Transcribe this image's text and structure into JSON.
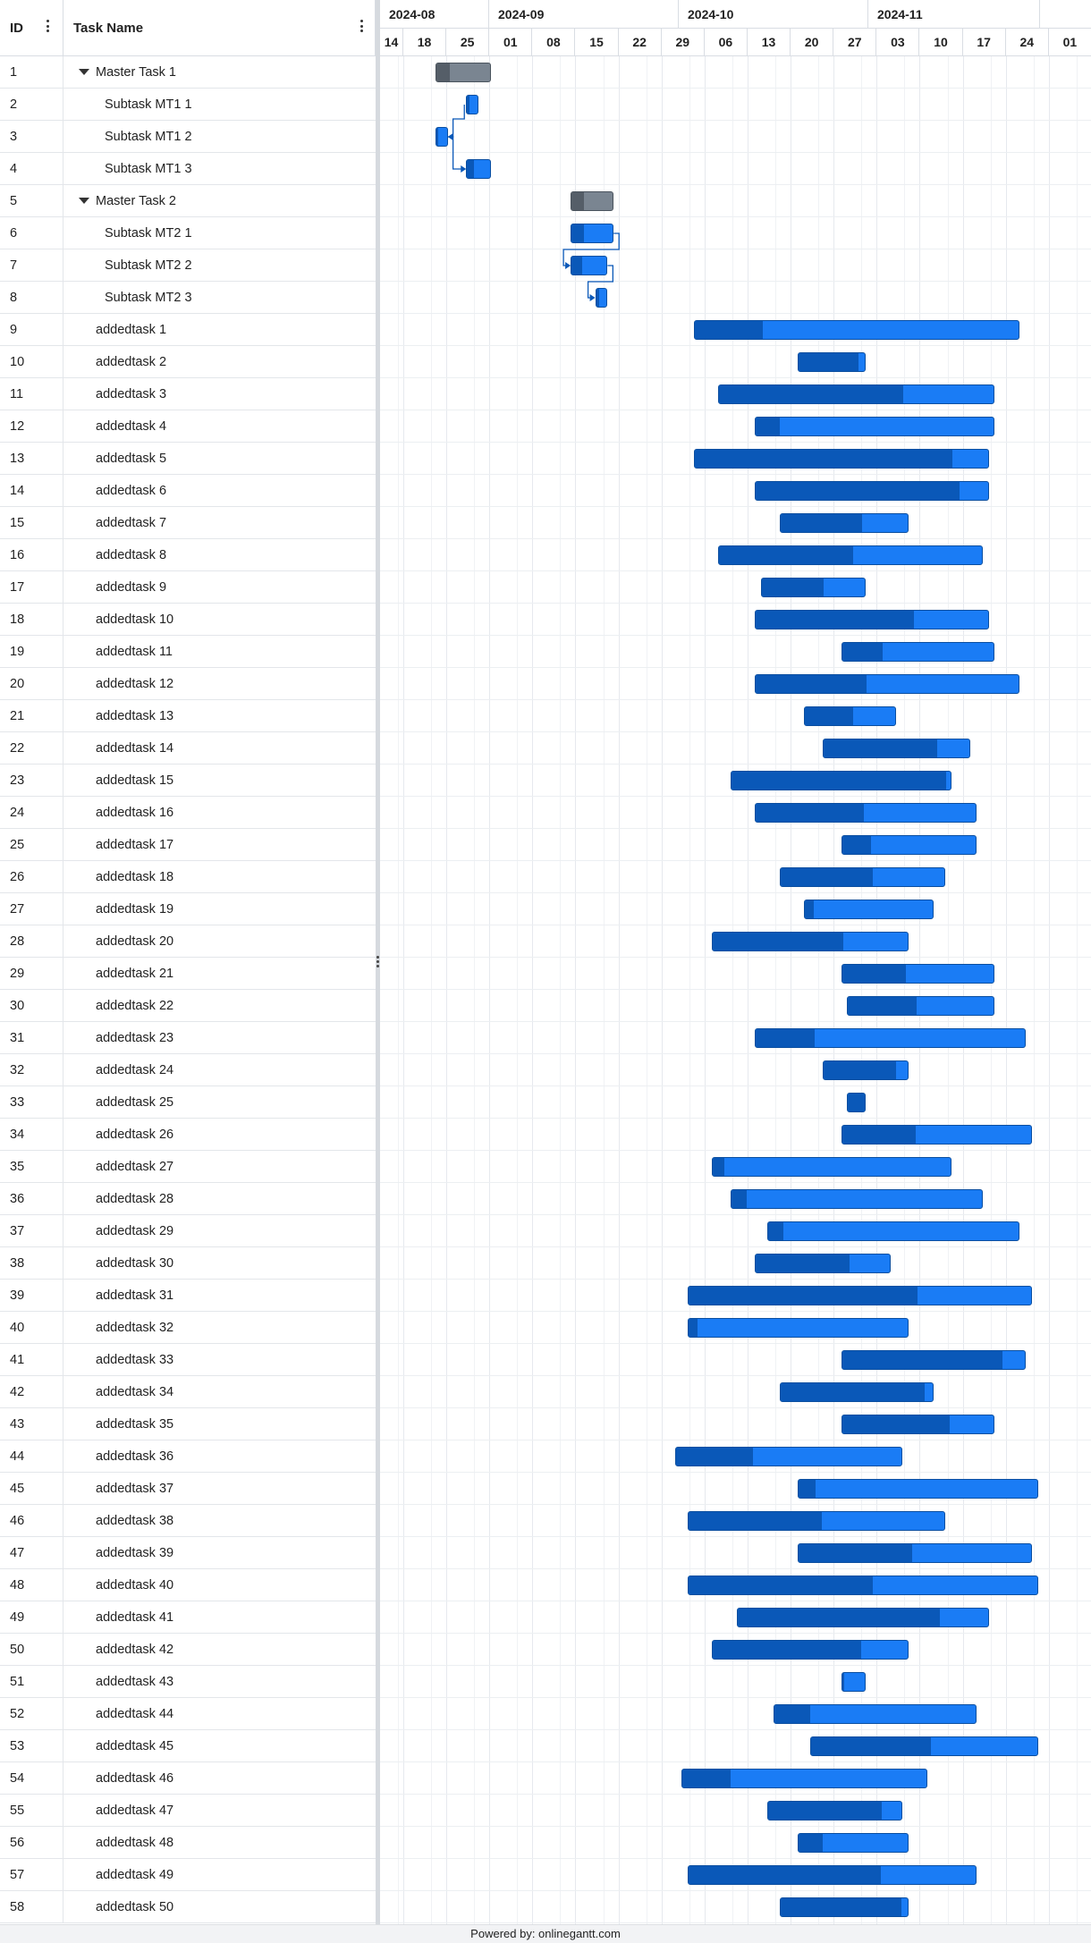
{
  "grid": {
    "id_header": "ID",
    "name_header": "Task Name"
  },
  "timeline": {
    "months": [
      "2024-08",
      "2024-09",
      "2024-10",
      "2024-11"
    ],
    "weeks": [
      "14",
      "18",
      "25",
      "01",
      "08",
      "15",
      "22",
      "29",
      "06",
      "13",
      "20",
      "27",
      "03",
      "10",
      "17",
      "24",
      "01"
    ]
  },
  "tasks": [
    {
      "id": "1",
      "name": "Master Task 1",
      "type": "parent",
      "expanded": true,
      "start": "2024-08-21",
      "end": "2024-08-30",
      "progress": 0.25
    },
    {
      "id": "2",
      "name": "Subtask MT1 1",
      "type": "child",
      "start": "2024-08-26",
      "end": "2024-08-28",
      "progress": 0.2
    },
    {
      "id": "3",
      "name": "Subtask MT1 2",
      "type": "child",
      "start": "2024-08-21",
      "end": "2024-08-23",
      "progress": 0.2
    },
    {
      "id": "4",
      "name": "Subtask MT1 3",
      "type": "child",
      "start": "2024-08-26",
      "end": "2024-08-30",
      "progress": 0.3
    },
    {
      "id": "5",
      "name": "Master Task 2",
      "type": "parent",
      "expanded": true,
      "start": "2024-09-12",
      "end": "2024-09-19",
      "progress": 0.3
    },
    {
      "id": "6",
      "name": "Subtask MT2 1",
      "type": "child",
      "start": "2024-09-12",
      "end": "2024-09-19",
      "progress": 0.3
    },
    {
      "id": "7",
      "name": "Subtask MT2 2",
      "type": "child",
      "start": "2024-09-12",
      "end": "2024-09-18",
      "progress": 0.3
    },
    {
      "id": "8",
      "name": "Subtask MT2 3",
      "type": "child",
      "start": "2024-09-16",
      "end": "2024-09-18",
      "progress": 0.3
    },
    {
      "id": "9",
      "name": "addedtask 1",
      "start": "2024-10-02",
      "end": "2024-11-24",
      "progress": 0.21
    },
    {
      "id": "10",
      "name": "addedtask 2",
      "start": "2024-10-19",
      "end": "2024-10-30",
      "progress": 0.9
    },
    {
      "id": "11",
      "name": "addedtask 3",
      "start": "2024-10-06",
      "end": "2024-11-20",
      "progress": 0.67
    },
    {
      "id": "12",
      "name": "addedtask 4",
      "start": "2024-10-12",
      "end": "2024-11-20",
      "progress": 0.1
    },
    {
      "id": "13",
      "name": "addedtask 5",
      "start": "2024-10-02",
      "end": "2024-11-19",
      "progress": 0.88
    },
    {
      "id": "14",
      "name": "addedtask 6",
      "start": "2024-10-12",
      "end": "2024-11-19",
      "progress": 0.88
    },
    {
      "id": "15",
      "name": "addedtask 7",
      "start": "2024-10-16",
      "end": "2024-11-06",
      "progress": 0.64
    },
    {
      "id": "16",
      "name": "addedtask 8",
      "start": "2024-10-06",
      "end": "2024-11-18",
      "progress": 0.51
    },
    {
      "id": "17",
      "name": "addedtask 9",
      "start": "2024-10-13",
      "end": "2024-10-30",
      "progress": 0.6
    },
    {
      "id": "18",
      "name": "addedtask 10",
      "start": "2024-10-12",
      "end": "2024-11-19",
      "progress": 0.68
    },
    {
      "id": "19",
      "name": "addedtask 11",
      "start": "2024-10-26",
      "end": "2024-11-20",
      "progress": 0.27
    },
    {
      "id": "20",
      "name": "addedtask 12",
      "start": "2024-10-12",
      "end": "2024-11-24",
      "progress": 0.42
    },
    {
      "id": "21",
      "name": "addedtask 13",
      "start": "2024-10-20",
      "end": "2024-11-04",
      "progress": 0.53
    },
    {
      "id": "22",
      "name": "addedtask 14",
      "start": "2024-10-23",
      "end": "2024-11-16",
      "progress": 0.78
    },
    {
      "id": "23",
      "name": "addedtask 15",
      "start": "2024-10-08",
      "end": "2024-11-13",
      "progress": 0.98
    },
    {
      "id": "24",
      "name": "addedtask 16",
      "start": "2024-10-12",
      "end": "2024-11-17",
      "progress": 0.49
    },
    {
      "id": "25",
      "name": "addedtask 17",
      "start": "2024-10-26",
      "end": "2024-11-17",
      "progress": 0.22
    },
    {
      "id": "26",
      "name": "addedtask 18",
      "start": "2024-10-16",
      "end": "2024-11-12",
      "progress": 0.56
    },
    {
      "id": "27",
      "name": "addedtask 19",
      "start": "2024-10-20",
      "end": "2024-11-10",
      "progress": 0.07
    },
    {
      "id": "28",
      "name": "addedtask 20",
      "start": "2024-10-05",
      "end": "2024-11-06",
      "progress": 0.67
    },
    {
      "id": "29",
      "name": "addedtask 21",
      "start": "2024-10-26",
      "end": "2024-11-20",
      "progress": 0.42
    },
    {
      "id": "30",
      "name": "addedtask 22",
      "start": "2024-10-27",
      "end": "2024-11-20",
      "progress": 0.47
    },
    {
      "id": "31",
      "name": "addedtask 23",
      "start": "2024-10-12",
      "end": "2024-11-25",
      "progress": 0.22
    },
    {
      "id": "32",
      "name": "addedtask 24",
      "start": "2024-10-23",
      "end": "2024-11-06",
      "progress": 0.86
    },
    {
      "id": "33",
      "name": "addedtask 25",
      "start": "2024-10-27",
      "end": "2024-10-30",
      "progress": 1.0
    },
    {
      "id": "34",
      "name": "addedtask 26",
      "start": "2024-10-26",
      "end": "2024-11-26",
      "progress": 0.39
    },
    {
      "id": "35",
      "name": "addedtask 27",
      "start": "2024-10-05",
      "end": "2024-11-13",
      "progress": 0.05
    },
    {
      "id": "36",
      "name": "addedtask 28",
      "start": "2024-10-08",
      "end": "2024-11-18",
      "progress": 0.06
    },
    {
      "id": "37",
      "name": "addedtask 29",
      "start": "2024-10-14",
      "end": "2024-11-24",
      "progress": 0.06
    },
    {
      "id": "38",
      "name": "addedtask 30",
      "start": "2024-10-12",
      "end": "2024-11-03",
      "progress": 0.7
    },
    {
      "id": "39",
      "name": "addedtask 31",
      "start": "2024-10-01",
      "end": "2024-11-26",
      "progress": 0.67
    },
    {
      "id": "40",
      "name": "addedtask 32",
      "start": "2024-10-01",
      "end": "2024-11-06",
      "progress": 0.04
    },
    {
      "id": "41",
      "name": "addedtask 33",
      "start": "2024-10-26",
      "end": "2024-11-25",
      "progress": 0.88
    },
    {
      "id": "42",
      "name": "addedtask 34",
      "start": "2024-10-16",
      "end": "2024-11-10",
      "progress": 0.95
    },
    {
      "id": "43",
      "name": "addedtask 35",
      "start": "2024-10-26",
      "end": "2024-11-20",
      "progress": 0.71
    },
    {
      "id": "44",
      "name": "addedtask 36",
      "start": "2024-09-29",
      "end": "2024-11-05",
      "progress": 0.34
    },
    {
      "id": "45",
      "name": "addedtask 37",
      "start": "2024-10-19",
      "end": "2024-11-27",
      "progress": 0.07
    },
    {
      "id": "46",
      "name": "addedtask 38",
      "start": "2024-10-01",
      "end": "2024-11-12",
      "progress": 0.52
    },
    {
      "id": "47",
      "name": "addedtask 39",
      "start": "2024-10-19",
      "end": "2024-11-26",
      "progress": 0.49
    },
    {
      "id": "48",
      "name": "addedtask 40",
      "start": "2024-10-01",
      "end": "2024-11-27",
      "progress": 0.53
    },
    {
      "id": "49",
      "name": "addedtask 41",
      "start": "2024-10-09",
      "end": "2024-11-19",
      "progress": 0.81
    },
    {
      "id": "50",
      "name": "addedtask 42",
      "start": "2024-10-05",
      "end": "2024-11-06",
      "progress": 0.76
    },
    {
      "id": "51",
      "name": "addedtask 43",
      "start": "2024-10-26",
      "end": "2024-10-30",
      "progress": 0.1
    },
    {
      "id": "52",
      "name": "addedtask 44",
      "start": "2024-10-15",
      "end": "2024-11-17",
      "progress": 0.18
    },
    {
      "id": "53",
      "name": "addedtask 45",
      "start": "2024-10-21",
      "end": "2024-11-27",
      "progress": 0.53
    },
    {
      "id": "54",
      "name": "addedtask 46",
      "start": "2024-09-30",
      "end": "2024-11-09",
      "progress": 0.2
    },
    {
      "id": "55",
      "name": "addedtask 47",
      "start": "2024-10-14",
      "end": "2024-11-05",
      "progress": 0.85
    },
    {
      "id": "56",
      "name": "addedtask 48",
      "start": "2024-10-19",
      "end": "2024-11-06",
      "progress": 0.22
    },
    {
      "id": "57",
      "name": "addedtask 49",
      "start": "2024-10-01",
      "end": "2024-11-17",
      "progress": 0.67
    },
    {
      "id": "58",
      "name": "addedtask 50",
      "start": "2024-10-16",
      "end": "2024-11-06",
      "progress": 0.95
    }
  ],
  "links": [
    {
      "from": "2",
      "to": "3"
    },
    {
      "from": "3",
      "to": "4"
    },
    {
      "from": "6",
      "to": "7"
    },
    {
      "from": "7",
      "to": "8"
    }
  ],
  "colors": {
    "bar": "#1a7cf5",
    "bar_progress": "#0a58b8",
    "parent_bar": "#7a8591",
    "parent_progress": "#555e68",
    "link": "#0a58b8"
  },
  "footer": {
    "text": "Powered by: onlinegantt.com"
  }
}
